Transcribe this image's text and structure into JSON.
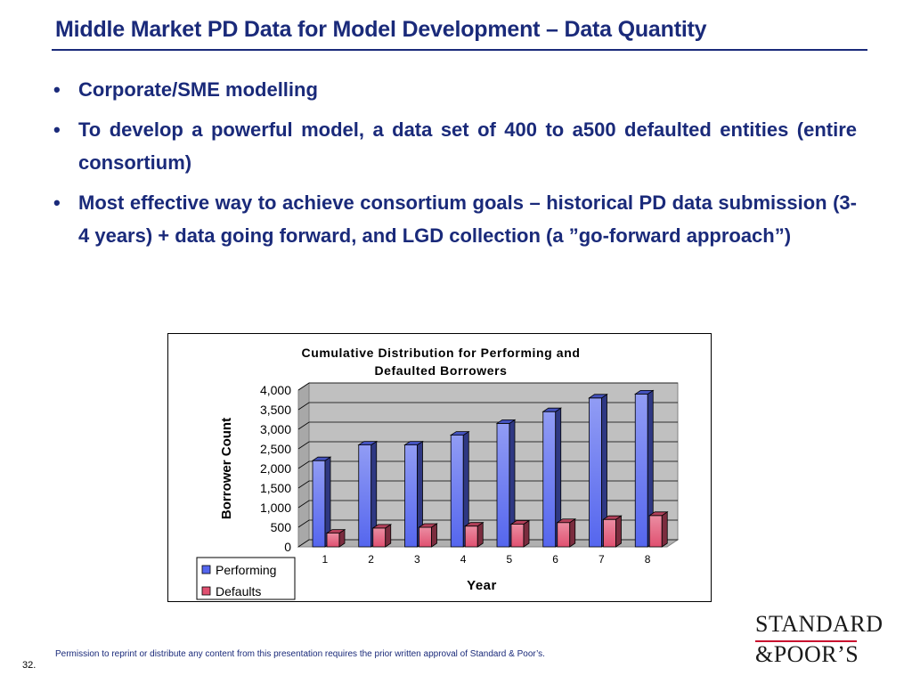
{
  "slide": {
    "title": "Middle Market PD Data for Model Development – Data Quantity",
    "page_number": "32.",
    "footer": "Permission to reprint or distribute any content from this presentation requires the prior written approval of Standard & Poor’s."
  },
  "bullets": [
    {
      "marker": "•",
      "text": "Corporate/SME modelling"
    },
    {
      "marker": "•",
      "text": "To develop a powerful model, a data set of 400 to a500 defaulted entities (entire consortium)"
    },
    {
      "marker": "•",
      "text": "Most effective way to achieve consortium goals – historical PD data submission (3-4 years) + data going forward, and LGD collection (a ”go-forward approach”)"
    }
  ],
  "logo": {
    "line1": "STANDARD",
    "line2": "&POOR’S",
    "rule_color": "#c8102e"
  },
  "chart_data": {
    "type": "bar",
    "style": "3d-clustered-column",
    "title": "Cumulative Distribution for Performing and Defaulted Borrowers",
    "title_lines": [
      "Cumulative Distribution for Performing and",
      "Defaulted Borrowers"
    ],
    "xlabel": "Year",
    "ylabel": "Borrower Count",
    "categories": [
      "1",
      "2",
      "3",
      "4",
      "5",
      "6",
      "7",
      "8"
    ],
    "series": [
      {
        "name": "Performing",
        "values": [
          2200,
          2600,
          2600,
          2850,
          3150,
          3450,
          3800,
          3900
        ],
        "color": "#5566ee"
      },
      {
        "name": "Defaults",
        "values": [
          350,
          480,
          500,
          530,
          580,
          620,
          700,
          800
        ],
        "color": "#e05070"
      }
    ],
    "ylim": [
      0,
      4000
    ],
    "yticks": [
      0,
      500,
      1000,
      1500,
      2000,
      2500,
      3000,
      3500,
      4000
    ],
    "ytick_labels": [
      "0",
      "500",
      "1,000",
      "1,500",
      "2,000",
      "2,500",
      "3,000",
      "3,500",
      "4,000"
    ],
    "grid": true,
    "legend_position": "bottom-left"
  }
}
